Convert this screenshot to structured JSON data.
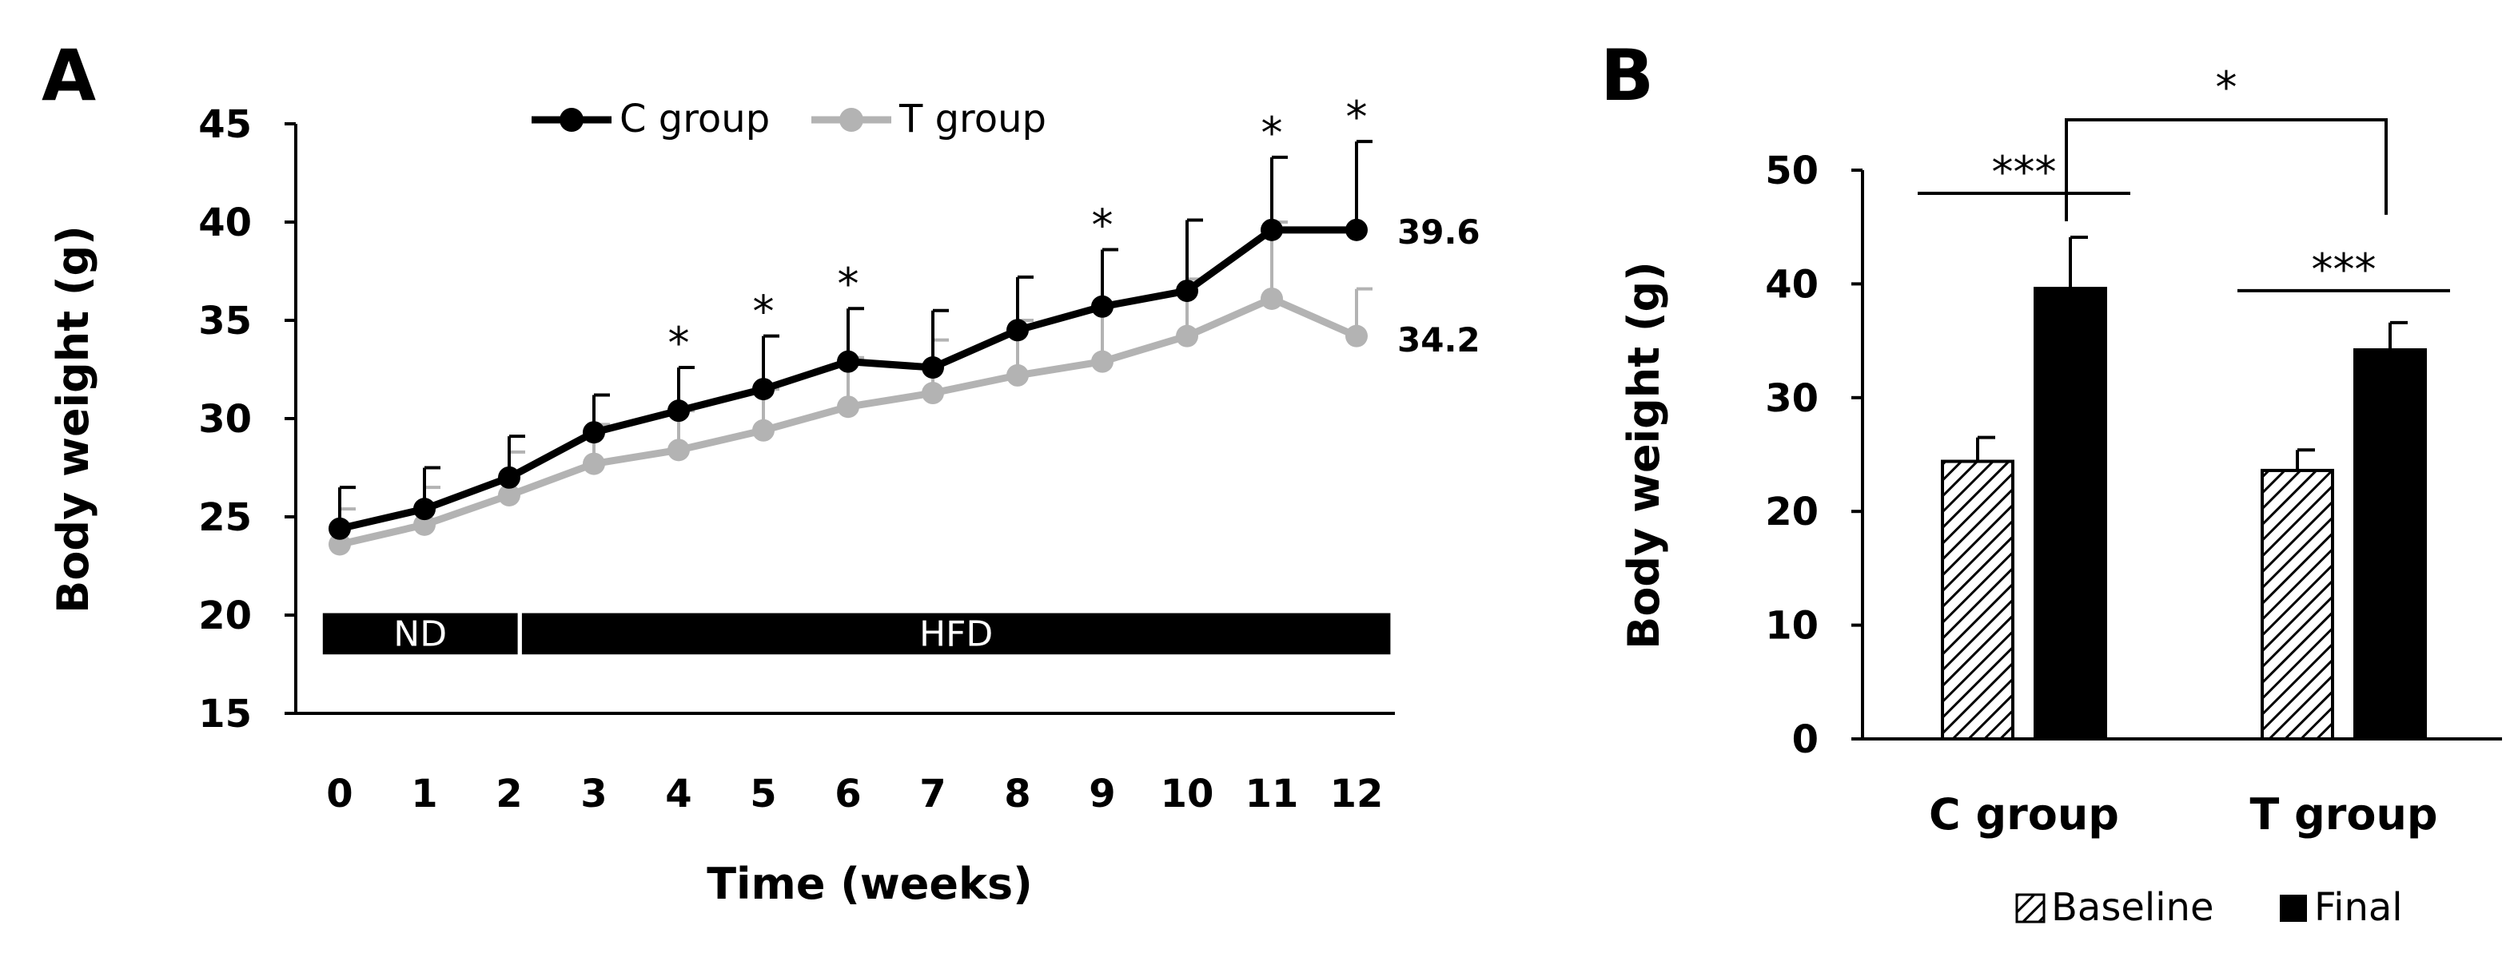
{
  "chart_data": [
    {
      "panel": "A",
      "type": "line",
      "xlabel": "Time (weeks)",
      "ylabel": "Body weight (g)",
      "ylim": [
        15,
        45
      ],
      "yticks": [
        15,
        20,
        25,
        30,
        35,
        40,
        45
      ],
      "x": [
        0,
        1,
        2,
        3,
        4,
        5,
        6,
        7,
        8,
        9,
        10,
        11,
        12
      ],
      "series": [
        {
          "name": "C group",
          "color": "#000000",
          "values": [
            24.4,
            25.4,
            27.0,
            29.3,
            30.4,
            31.5,
            32.9,
            32.6,
            34.5,
            35.7,
            36.5,
            39.6,
            39.6
          ],
          "errors": [
            2.1,
            2.1,
            2.1,
            1.9,
            2.2,
            2.7,
            2.7,
            2.9,
            2.7,
            2.9,
            3.6,
            3.7,
            4.5
          ]
        },
        {
          "name": "T group",
          "color": "#b3b3b3",
          "values": [
            23.6,
            24.6,
            26.1,
            27.7,
            28.4,
            29.4,
            30.6,
            31.3,
            32.2,
            32.9,
            34.2,
            36.1,
            34.2
          ],
          "errors": [
            1.8,
            1.9,
            2.2,
            2.0,
            2.0,
            2.1,
            2.5,
            2.7,
            2.8,
            2.9,
            2.9,
            3.9,
            2.4
          ]
        }
      ],
      "end_labels": [
        "39.6",
        "34.2"
      ],
      "significance": {
        "weeks": [
          4,
          5,
          6,
          9,
          11,
          12
        ],
        "symbol": "*"
      },
      "diet_periods": [
        {
          "label": "ND",
          "start": -0.2,
          "end": 2.1
        },
        {
          "label": "HFD",
          "start": 2.15,
          "end": 12.4
        }
      ],
      "diet_band_y": [
        18,
        20.1
      ]
    },
    {
      "panel": "B",
      "type": "bar",
      "ylabel": "Body weight (g)",
      "ylim": [
        0,
        50
      ],
      "yticks": [
        0,
        10,
        20,
        30,
        40,
        50
      ],
      "categories": [
        "C group",
        "T group"
      ],
      "series": [
        {
          "name": "Baseline",
          "pattern": "hatched",
          "values": [
            24.4,
            23.6
          ],
          "errors": [
            2.1,
            1.8
          ]
        },
        {
          "name": "Final",
          "pattern": "solid",
          "values": [
            39.6,
            34.2
          ],
          "errors": [
            4.5,
            2.4
          ]
        }
      ],
      "significance": [
        {
          "label": "***",
          "between": "Baseline vs Final",
          "group": "C group"
        },
        {
          "label": "***",
          "between": "Baseline vs Final",
          "group": "T group"
        },
        {
          "label": "*",
          "between": "C group Final vs T group Final"
        }
      ]
    }
  ]
}
